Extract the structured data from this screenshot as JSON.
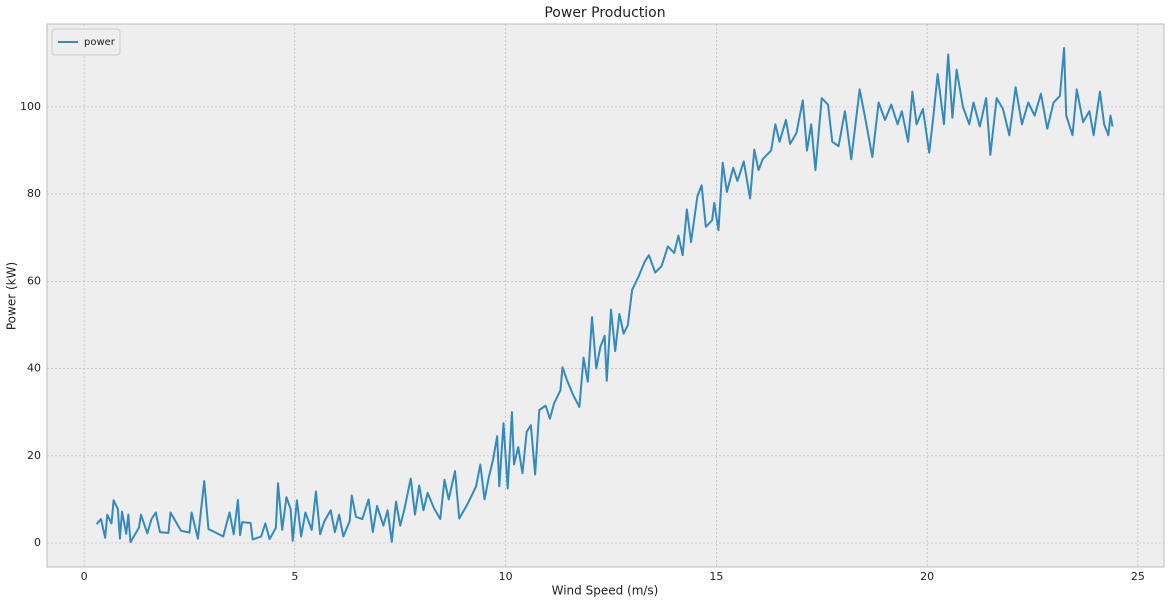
{
  "chart_data": {
    "type": "line",
    "title": "Power Production",
    "x_label": "Wind Speed (m/s)",
    "y_label": "Power (kW)",
    "x": [
      0.3,
      0.4,
      0.5,
      0.55,
      0.65,
      0.7,
      0.8,
      0.85,
      0.9,
      1.0,
      1.05,
      1.1,
      1.3,
      1.35,
      1.5,
      1.6,
      1.7,
      1.8,
      2.0,
      2.05,
      2.3,
      2.5,
      2.55,
      2.7,
      2.85,
      2.95,
      3.1,
      3.3,
      3.45,
      3.55,
      3.65,
      3.7,
      3.75,
      3.95,
      4.0,
      4.2,
      4.3,
      4.4,
      4.55,
      4.6,
      4.7,
      4.8,
      4.9,
      4.95,
      5.05,
      5.15,
      5.25,
      5.4,
      5.5,
      5.6,
      5.7,
      5.85,
      5.95,
      6.05,
      6.15,
      6.3,
      6.35,
      6.45,
      6.6,
      6.75,
      6.85,
      6.95,
      7.1,
      7.2,
      7.3,
      7.4,
      7.5,
      7.6,
      7.75,
      7.85,
      7.95,
      8.05,
      8.15,
      8.3,
      8.45,
      8.55,
      8.65,
      8.8,
      8.9,
      9.1,
      9.3,
      9.4,
      9.5,
      9.6,
      9.7,
      9.8,
      9.85,
      9.95,
      10.05,
      10.15,
      10.2,
      10.3,
      10.4,
      10.5,
      10.6,
      10.7,
      10.8,
      10.95,
      11.05,
      11.15,
      11.3,
      11.35,
      11.45,
      11.6,
      11.75,
      11.85,
      11.95,
      12.05,
      12.15,
      12.25,
      12.35,
      12.4,
      12.5,
      12.6,
      12.7,
      12.8,
      12.9,
      13.0,
      13.15,
      13.3,
      13.4,
      13.55,
      13.7,
      13.85,
      14.0,
      14.1,
      14.2,
      14.3,
      14.4,
      14.55,
      14.65,
      14.75,
      14.9,
      14.95,
      15.05,
      15.15,
      15.25,
      15.4,
      15.5,
      15.65,
      15.8,
      15.9,
      16.0,
      16.1,
      16.3,
      16.4,
      16.5,
      16.65,
      16.75,
      16.9,
      17.05,
      17.15,
      17.25,
      17.35,
      17.5,
      17.65,
      17.75,
      17.9,
      18.05,
      18.2,
      18.4,
      18.55,
      18.7,
      18.85,
      19.0,
      19.15,
      19.3,
      19.4,
      19.55,
      19.65,
      19.75,
      19.9,
      20.05,
      20.15,
      20.25,
      20.4,
      20.5,
      20.6,
      20.7,
      20.85,
      21.0,
      21.1,
      21.25,
      21.4,
      21.5,
      21.65,
      21.8,
      21.95,
      22.1,
      22.25,
      22.4,
      22.55,
      22.7,
      22.85,
      23.0,
      23.15,
      23.25,
      23.3,
      23.45,
      23.55,
      23.7,
      23.85,
      23.95,
      24.1,
      24.2,
      24.3,
      24.35,
      24.4
    ],
    "series": [
      {
        "name": "power",
        "color": "#348abd",
        "values": [
          4.3,
          5.5,
          1.2,
          6.5,
          4.5,
          9.8,
          7.8,
          1.0,
          7.2,
          2.1,
          6.5,
          0.2,
          3.5,
          6.5,
          2.2,
          5.5,
          7.0,
          2.5,
          2.3,
          7.0,
          2.8,
          2.4,
          7.0,
          1.0,
          14.2,
          3.2,
          2.5,
          1.5,
          7.0,
          2.0,
          9.9,
          1.8,
          4.8,
          4.6,
          0.8,
          1.5,
          4.5,
          0.9,
          3.5,
          13.7,
          3.0,
          10.5,
          7.8,
          0.5,
          9.8,
          1.5,
          7.0,
          3.0,
          11.8,
          2.0,
          5.0,
          7.5,
          2.5,
          6.5,
          1.5,
          5.0,
          10.9,
          6.0,
          5.5,
          10.0,
          2.5,
          8.5,
          4.0,
          7.5,
          0.3,
          9.5,
          4.0,
          7.8,
          14.8,
          6.5,
          13.2,
          7.5,
          11.5,
          8.0,
          5.5,
          14.5,
          10.0,
          16.5,
          5.6,
          9.0,
          13.0,
          18.0,
          10.0,
          15.0,
          19.0,
          24.5,
          13.0,
          27.5,
          12.5,
          30.0,
          18.0,
          22.0,
          16.0,
          25.5,
          27.0,
          15.7,
          30.5,
          31.5,
          28.5,
          32.0,
          35.0,
          40.3,
          37.5,
          34.0,
          31.2,
          42.5,
          37.0,
          51.8,
          40.0,
          45.0,
          47.5,
          37.2,
          53.5,
          44.0,
          52.5,
          48.0,
          50.0,
          58.0,
          61.0,
          64.5,
          66.0,
          62.0,
          63.5,
          68.0,
          66.5,
          70.5,
          66.0,
          76.5,
          69.0,
          79.5,
          82.0,
          72.5,
          74.0,
          78.0,
          71.7,
          87.2,
          80.5,
          86.0,
          83.0,
          87.5,
          79.0,
          90.2,
          85.5,
          88.0,
          90.0,
          96.0,
          92.0,
          97.0,
          91.5,
          94.0,
          101.5,
          90.0,
          96.0,
          85.5,
          102.0,
          100.5,
          92.0,
          91.0,
          99.0,
          88.0,
          104.0,
          96.5,
          88.5,
          101.0,
          97.0,
          100.5,
          96.0,
          99.0,
          92.0,
          103.5,
          96.0,
          99.5,
          89.5,
          98.0,
          107.5,
          96.0,
          112.0,
          97.5,
          108.5,
          100.0,
          96.0,
          101.0,
          95.5,
          102.0,
          89.0,
          102.0,
          99.5,
          93.5,
          104.5,
          96.0,
          101.0,
          98.0,
          103.0,
          95.0,
          101.0,
          102.5,
          113.5,
          98.0,
          93.5,
          104.0,
          96.5,
          99.0,
          93.5,
          103.5,
          96.0,
          93.5,
          98.0,
          95.5
        ]
      }
    ],
    "xlim": [
      -0.88,
      25.62
    ],
    "ylim": [
      -5.5,
      119
    ],
    "xticks": [
      0,
      5,
      10,
      15,
      20,
      25
    ],
    "yticks": [
      0,
      20,
      40,
      60,
      80,
      100
    ],
    "grid": true,
    "legend": "upper left"
  }
}
